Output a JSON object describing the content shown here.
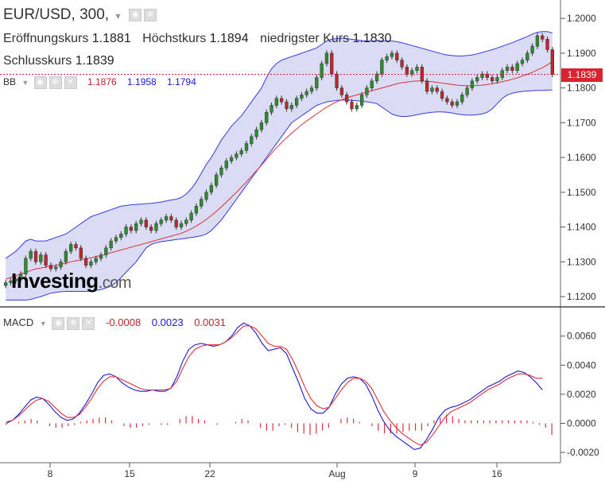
{
  "header": {
    "symbol": "EUR/USD, 300,",
    "open_label": "Eröffnungskurs",
    "open_value": "1.1881",
    "high_label": "Höchstkurs",
    "high_value": "1.1894",
    "low_label": "niedrigster Kurs",
    "low_value": "1.1830",
    "close_label": "Schlusskurs",
    "close_value": "1.1839"
  },
  "bb_indicator": {
    "label": "BB",
    "v1": "1.1876",
    "v2": "1.1958",
    "v3": "1.1794"
  },
  "macd_indicator": {
    "label": "MACD",
    "v1": "-0.0008",
    "v2": "0.0023",
    "v3": "0.0031"
  },
  "current_price_tag": "1.1839",
  "watermark": {
    "brand": "Investing",
    "suffix": ".com"
  },
  "colors": {
    "up": "#2e8b2e",
    "down": "#c0272d",
    "band_fill": "#ccd0ef",
    "band_line": "#3a3ae0",
    "mid_line": "#e0303a",
    "macd_line": "#1a1ad8",
    "signal_line": "#e0303a"
  },
  "chart_data": [
    {
      "type": "candlestick",
      "title": "",
      "y_ticks": [
        "1.1200",
        "1.1300",
        "1.1400",
        "1.1500",
        "1.1600",
        "1.1700",
        "1.1800",
        "1.1900",
        "1.2000"
      ],
      "ylim": [
        1.1175,
        1.203
      ],
      "x_ticks": [
        "8",
        "15",
        "22",
        "Aug",
        "9",
        "16"
      ],
      "close": [
        1.124,
        1.1245,
        1.125,
        1.1265,
        1.131,
        1.133,
        1.13,
        1.132,
        1.129,
        1.128,
        1.1285,
        1.13,
        1.133,
        1.135,
        1.134,
        1.131,
        1.129,
        1.13,
        1.131,
        1.132,
        1.134,
        1.136,
        1.137,
        1.138,
        1.14,
        1.139,
        1.141,
        1.142,
        1.14,
        1.139,
        1.141,
        1.142,
        1.143,
        1.142,
        1.14,
        1.141,
        1.142,
        1.144,
        1.146,
        1.148,
        1.15,
        1.152,
        1.155,
        1.157,
        1.159,
        1.16,
        1.161,
        1.162,
        1.164,
        1.166,
        1.168,
        1.17,
        1.173,
        1.175,
        1.177,
        1.176,
        1.174,
        1.175,
        1.177,
        1.178,
        1.179,
        1.18,
        1.183,
        1.187,
        1.19,
        1.184,
        1.18,
        1.178,
        1.176,
        1.174,
        1.175,
        1.178,
        1.18,
        1.182,
        1.184,
        1.188,
        1.189,
        1.19,
        1.188,
        1.186,
        1.184,
        1.185,
        1.186,
        1.182,
        1.179,
        1.18,
        1.179,
        1.177,
        1.176,
        1.175,
        1.176,
        1.178,
        1.18,
        1.182,
        1.183,
        1.184,
        1.183,
        1.182,
        1.183,
        1.185,
        1.186,
        1.185,
        1.187,
        1.188,
        1.19,
        1.192,
        1.195,
        1.194,
        1.191,
        1.1839
      ],
      "bb_upper": [
        1.131,
        1.132,
        1.133,
        1.1345,
        1.136,
        1.1365,
        1.136,
        1.136,
        1.136,
        1.1365,
        1.137,
        1.1375,
        1.138,
        1.139,
        1.14,
        1.141,
        1.142,
        1.143,
        1.1435,
        1.144,
        1.1445,
        1.145,
        1.1455,
        1.146,
        1.1462,
        1.1464,
        1.1465,
        1.1466,
        1.1467,
        1.1468,
        1.147,
        1.1472,
        1.1475,
        1.1478,
        1.148,
        1.1485,
        1.1495,
        1.151,
        1.153,
        1.1555,
        1.158,
        1.16,
        1.1625,
        1.165,
        1.167,
        1.169,
        1.1705,
        1.172,
        1.174,
        1.176,
        1.178,
        1.18,
        1.183,
        1.1855,
        1.187,
        1.188,
        1.1885,
        1.189,
        1.1895,
        1.19,
        1.1905,
        1.191,
        1.1915,
        1.1925,
        1.1935,
        1.194,
        1.1942,
        1.1943,
        1.1942,
        1.194,
        1.1938,
        1.1936,
        1.1935,
        1.1935,
        1.1935,
        1.1935,
        1.1935,
        1.1935,
        1.1933,
        1.193,
        1.1926,
        1.1922,
        1.1918,
        1.1914,
        1.191,
        1.1906,
        1.1902,
        1.1898,
        1.1895,
        1.1893,
        1.1892,
        1.1892,
        1.1893,
        1.1895,
        1.1898,
        1.1902,
        1.1906,
        1.191,
        1.1915,
        1.192,
        1.1925,
        1.193,
        1.1936,
        1.1942,
        1.1948,
        1.1955,
        1.196,
        1.1962,
        1.1962,
        1.1958
      ],
      "bb_middle": [
        1.125,
        1.1255,
        1.126,
        1.1265,
        1.127,
        1.1275,
        1.128,
        1.1282,
        1.1285,
        1.1288,
        1.129,
        1.1293,
        1.1296,
        1.13,
        1.1303,
        1.1306,
        1.1309,
        1.1312,
        1.1315,
        1.1318,
        1.1322,
        1.1326,
        1.133,
        1.1334,
        1.1338,
        1.1342,
        1.1346,
        1.135,
        1.1354,
        1.1358,
        1.1362,
        1.1366,
        1.137,
        1.1374,
        1.1378,
        1.1382,
        1.1388,
        1.1395,
        1.1403,
        1.1412,
        1.1422,
        1.1433,
        1.1445,
        1.1458,
        1.1472,
        1.1486,
        1.15,
        1.1515,
        1.153,
        1.1546,
        1.1562,
        1.1578,
        1.1595,
        1.1612,
        1.1628,
        1.1643,
        1.1657,
        1.167,
        1.1682,
        1.1694,
        1.1705,
        1.1715,
        1.1725,
        1.1735,
        1.1745,
        1.1753,
        1.176,
        1.1766,
        1.1771,
        1.1776,
        1.178,
        1.1784,
        1.1788,
        1.1792,
        1.1796,
        1.18,
        1.1804,
        1.1808,
        1.1812,
        1.1815,
        1.1817,
        1.1819,
        1.182,
        1.182,
        1.1819,
        1.1818,
        1.1816,
        1.1814,
        1.1812,
        1.181,
        1.1808,
        1.1807,
        1.1806,
        1.1806,
        1.1807,
        1.1808,
        1.181,
        1.1812,
        1.1815,
        1.1818,
        1.1821,
        1.1825,
        1.1829,
        1.1834,
        1.1839,
        1.1845,
        1.1852,
        1.1858,
        1.1866,
        1.1876
      ],
      "bb_lower": [
        1.119,
        1.119,
        1.119,
        1.119,
        1.119,
        1.1192,
        1.1196,
        1.12,
        1.1205,
        1.121,
        1.1212,
        1.1214,
        1.1215,
        1.1215,
        1.1215,
        1.1215,
        1.1215,
        1.1216,
        1.1218,
        1.122,
        1.1225,
        1.123,
        1.124,
        1.1255,
        1.127,
        1.1285,
        1.13,
        1.132,
        1.134,
        1.135,
        1.1355,
        1.1358,
        1.136,
        1.1362,
        1.1364,
        1.1366,
        1.1368,
        1.137,
        1.1372,
        1.1375,
        1.138,
        1.139,
        1.1405,
        1.142,
        1.144,
        1.146,
        1.148,
        1.15,
        1.152,
        1.154,
        1.156,
        1.158,
        1.16,
        1.162,
        1.164,
        1.166,
        1.168,
        1.17,
        1.171,
        1.172,
        1.173,
        1.174,
        1.175,
        1.1755,
        1.176,
        1.1762,
        1.1764,
        1.1765,
        1.1765,
        1.1764,
        1.1763,
        1.1762,
        1.176,
        1.1758,
        1.1755,
        1.1745,
        1.1735,
        1.1725,
        1.172,
        1.1718,
        1.1718,
        1.172,
        1.1723,
        1.1726,
        1.1728,
        1.173,
        1.1731,
        1.1731,
        1.173,
        1.1728,
        1.1725,
        1.1723,
        1.1722,
        1.1722,
        1.1723,
        1.1725,
        1.173,
        1.174,
        1.1755,
        1.177,
        1.178,
        1.1785,
        1.1788,
        1.179,
        1.1791,
        1.1792,
        1.1793,
        1.1793,
        1.1794,
        1.1794
      ]
    },
    {
      "type": "line",
      "title": "",
      "y_ticks": [
        "-0.0020",
        "0.0000",
        "0.0020",
        "0.0040",
        "0.0060"
      ],
      "ylim": [
        -0.0026,
        0.0079
      ],
      "x_ticks": [
        "8",
        "15",
        "22",
        "Aug",
        "9",
        "16"
      ],
      "series": [
        {
          "name": "",
          "values": [
            0.0,
            0.0002,
            0.0006,
            0.0011,
            0.0016,
            0.0018,
            0.0017,
            0.0013,
            0.0008,
            0.0004,
            0.0002,
            0.0003,
            0.0007,
            0.0013,
            0.002,
            0.0028,
            0.0033,
            0.0034,
            0.0032,
            0.0028,
            0.0025,
            0.0023,
            0.0022,
            0.0022,
            0.0023,
            0.0022,
            0.0022,
            0.0024,
            0.0032,
            0.0043,
            0.0051,
            0.0054,
            0.0055,
            0.0054,
            0.0053,
            0.0054,
            0.0056,
            0.006,
            0.0066,
            0.0069,
            0.0067,
            0.0062,
            0.0055,
            0.005,
            0.0051,
            0.0052,
            0.0048,
            0.0038,
            0.0028,
            0.0017,
            0.001,
            0.0007,
            0.0007,
            0.0011,
            0.002,
            0.0027,
            0.0031,
            0.0032,
            0.0031,
            0.0027,
            0.0019,
            0.0009,
            0.0001,
            -0.0005,
            -0.0009,
            -0.0012,
            -0.0015,
            -0.0018,
            -0.0017,
            -0.0011,
            -0.0004,
            0.0004,
            0.0009,
            0.0011,
            0.0012,
            0.0014,
            0.0016,
            0.0019,
            0.0022,
            0.0025,
            0.0027,
            0.0029,
            0.0032,
            0.0034,
            0.0036,
            0.0035,
            0.0032,
            0.0028,
            0.0023
          ]
        },
        {
          "name": "",
          "values": [
            0.0001,
            0.0002,
            0.0005,
            0.0009,
            0.0013,
            0.0016,
            0.0017,
            0.0015,
            0.0011,
            0.0007,
            0.0004,
            0.0004,
            0.0006,
            0.0011,
            0.0017,
            0.0024,
            0.0029,
            0.0032,
            0.0032,
            0.003,
            0.0028,
            0.0026,
            0.0024,
            0.0023,
            0.0023,
            0.0023,
            0.0023,
            0.0024,
            0.0029,
            0.0038,
            0.0046,
            0.0051,
            0.0053,
            0.0054,
            0.0054,
            0.0054,
            0.0056,
            0.0059,
            0.0063,
            0.0067,
            0.0067,
            0.0065,
            0.006,
            0.0055,
            0.0053,
            0.0053,
            0.0051,
            0.0044,
            0.0035,
            0.0025,
            0.0017,
            0.0012,
            0.001,
            0.0011,
            0.0017,
            0.0023,
            0.0028,
            0.0031,
            0.0031,
            0.0029,
            0.0024,
            0.0016,
            0.0008,
            0.0002,
            -0.0003,
            -0.0007,
            -0.001,
            -0.0013,
            -0.0015,
            -0.0013,
            -0.0008,
            -0.0002,
            0.0004,
            0.0008,
            0.001,
            0.0012,
            0.0014,
            0.0017,
            0.002,
            0.0023,
            0.0025,
            0.0027,
            0.003,
            0.0032,
            0.0034,
            0.0034,
            0.0033,
            0.0031,
            0.0031
          ]
        }
      ],
      "histogram": [
        -0.0001,
        0.0,
        0.0001,
        0.0002,
        0.0003,
        0.0002,
        0.0,
        -0.0002,
        -0.0003,
        -0.0003,
        -0.0002,
        -0.0001,
        0.0001,
        0.0002,
        0.0003,
        0.0004,
        0.0004,
        0.0002,
        0.0,
        -0.0002,
        -0.0003,
        -0.0003,
        -0.0002,
        -0.0001,
        0.0,
        -0.0001,
        -0.0001,
        0.0,
        0.0003,
        0.0005,
        0.0005,
        0.0003,
        0.0002,
        0.0,
        -0.0001,
        0.0,
        0.0,
        0.0001,
        0.0003,
        0.0002,
        0.0,
        -0.0003,
        -0.0005,
        -0.0005,
        -0.0002,
        -0.0001,
        -0.0003,
        -0.0006,
        -0.0007,
        -0.0008,
        -0.0007,
        -0.0005,
        -0.0003,
        0.0,
        0.0003,
        0.0004,
        0.0003,
        0.0001,
        0.0,
        -0.0002,
        -0.0005,
        -0.0007,
        -0.0007,
        -0.0007,
        -0.0006,
        -0.0005,
        -0.0005,
        -0.0005,
        -0.0002,
        0.0002,
        0.0004,
        0.0006,
        0.0005,
        0.0003,
        0.0002,
        0.0002,
        0.0002,
        0.0002,
        0.0002,
        0.0002,
        0.0002,
        0.0002,
        0.0002,
        0.0002,
        0.0002,
        0.0001,
        -0.0001,
        -0.0003,
        -0.0008
      ]
    }
  ]
}
